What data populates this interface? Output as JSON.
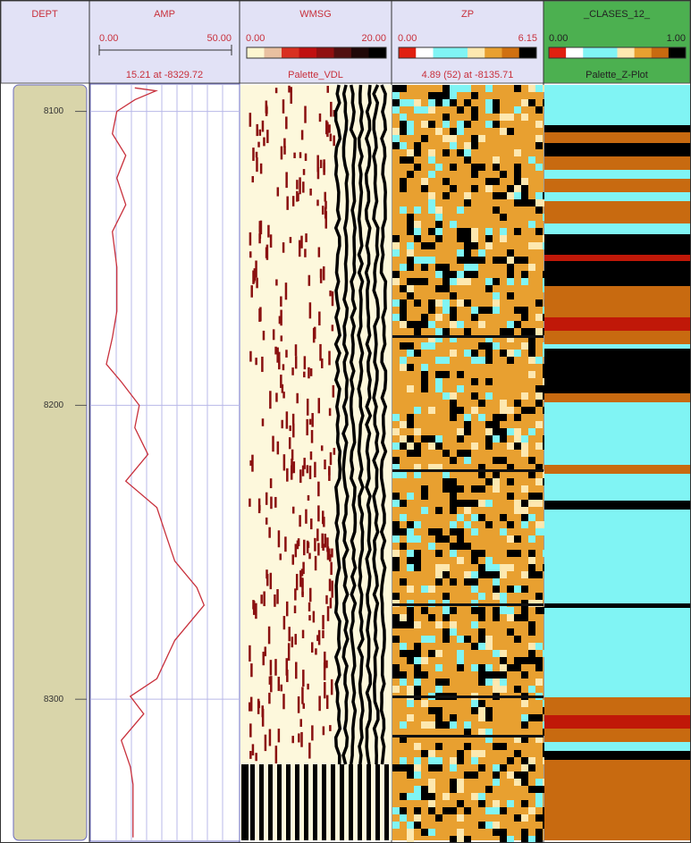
{
  "depth_track": {
    "title": "DEPT"
  },
  "chart_data": {
    "type": "line",
    "title": "AMP",
    "color": "#c8303c",
    "x": [
      8092,
      8093,
      8096,
      8100,
      8107.6,
      8115,
      8122.7,
      8131.8,
      8140.9,
      8153,
      8168,
      8177,
      8186,
      8192,
      8200,
      8207.6,
      8216.7,
      8225.8,
      8234.8,
      8244,
      8253,
      8262,
      8268,
      8280,
      8293,
      8299,
      8305,
      8314,
      8323,
      8329,
      8347
    ],
    "values": [
      14.9,
      22,
      15,
      8.9,
      7.4,
      11.9,
      8.9,
      11.9,
      7.4,
      8.9,
      8.9,
      7.4,
      5.4,
      10.4,
      16.4,
      14.9,
      19.3,
      11.9,
      22.3,
      25.3,
      28.3,
      35.7,
      38.1,
      28.3,
      22.3,
      13.4,
      17.9,
      10.4,
      13.4,
      14.3,
      14.3
    ],
    "xlim": [
      0,
      50
    ],
    "xticks": [
      {
        "value": 0,
        "label": "0.00"
      },
      {
        "value": 50,
        "label": "50.00"
      }
    ],
    "ylim": [
      8091,
      8348
    ],
    "yticks": [
      8100,
      8200,
      8300
    ],
    "readout": "15.21 at -8329.72",
    "grid": true
  },
  "tracks": [
    {
      "title": "WMSG",
      "scale_min": "0.00",
      "scale_max": "20.00",
      "caption": "Palette_VDL"
    },
    {
      "title": "ZP",
      "scale_min": "0.00",
      "scale_max": "6.15",
      "caption": "4.89 (52) at -8135.71"
    },
    {
      "title": "_CLASES_12_",
      "scale_min": "0.00",
      "scale_max": "1.00",
      "caption": "Palette_Z-Plot"
    }
  ]
}
